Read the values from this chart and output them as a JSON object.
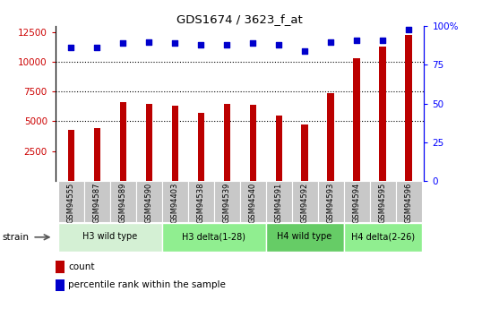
{
  "title": "GDS1674 / 3623_f_at",
  "samples": [
    "GSM94555",
    "GSM94587",
    "GSM94589",
    "GSM94590",
    "GSM94403",
    "GSM94538",
    "GSM94539",
    "GSM94540",
    "GSM94591",
    "GSM94592",
    "GSM94593",
    "GSM94594",
    "GSM94595",
    "GSM94596"
  ],
  "counts": [
    4300,
    4400,
    6600,
    6500,
    6300,
    5700,
    6500,
    6400,
    5500,
    4700,
    7400,
    10300,
    11300,
    12300
  ],
  "percentiles": [
    86,
    86,
    89,
    90,
    89,
    88,
    88,
    89,
    88,
    84,
    90,
    91,
    91,
    98
  ],
  "groups": [
    {
      "label": "H3 wild type",
      "start": 0,
      "end": 3,
      "color": "#d4f0d4"
    },
    {
      "label": "H3 delta(1-28)",
      "start": 4,
      "end": 7,
      "color": "#90ee90"
    },
    {
      "label": "H4 wild type",
      "start": 8,
      "end": 10,
      "color": "#66cc66"
    },
    {
      "label": "H4 delta(2-26)",
      "start": 11,
      "end": 13,
      "color": "#90ee90"
    }
  ],
  "ylim_left": [
    0,
    13000
  ],
  "ylim_right": [
    0,
    100
  ],
  "yticks_left": [
    2500,
    5000,
    7500,
    10000,
    12500
  ],
  "yticks_right": [
    0,
    25,
    50,
    75,
    100
  ],
  "bar_color": "#bb0000",
  "dot_color": "#0000cc",
  "bar_width": 0.25,
  "grid_lines": [
    5000,
    7500,
    10000
  ],
  "strain_label": "strain",
  "legend_count": "count",
  "legend_percentile": "percentile rank within the sample"
}
